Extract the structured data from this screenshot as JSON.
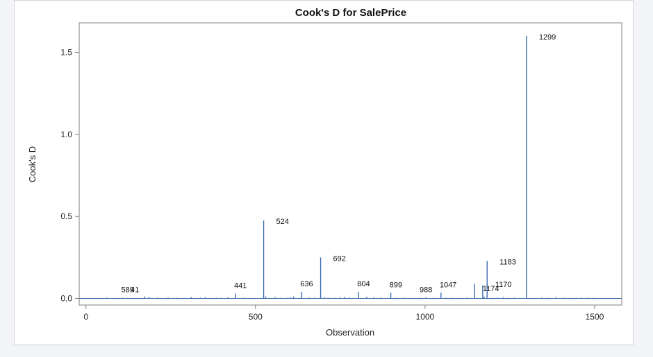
{
  "chart_data": {
    "type": "needle",
    "title": "Cook's D for SalePrice",
    "xlabel": "Observation",
    "ylabel": "Cook's D",
    "xlim": [
      -20,
      1580
    ],
    "ylim": [
      -0.04,
      1.68
    ],
    "x_ticks": [
      0,
      500,
      1000,
      1500
    ],
    "y_ticks": [
      0.0,
      0.5,
      1.0,
      1.5
    ],
    "y_tick_labels": [
      "0.0",
      "0.5",
      "1.0",
      "1.5"
    ],
    "series": [
      {
        "x": [
          62,
          108,
          124,
          172,
          186,
          212,
          242,
          268,
          290,
          310,
          338,
          352,
          372,
          386,
          398,
          418,
          441,
          464,
          486,
          524,
          530,
          542,
          558,
          574,
          592,
          602,
          612,
          633,
          636,
          658,
          674,
          692,
          704,
          718,
          734,
          748,
          762,
          776,
          804,
          828,
          848,
          870,
          899,
          914,
          938,
          988,
          1002,
          1024,
          1047,
          1062,
          1082,
          1106,
          1124,
          1146,
          1170,
          1174,
          1183,
          1200,
          1214,
          1230,
          1246,
          1262,
          1278,
          1299,
          1324,
          1344,
          1362,
          1386,
          1410,
          1428,
          1446,
          1462,
          1482,
          1496
        ],
        "values": [
          0.006,
          0.004,
          0.003,
          0.012,
          0.008,
          0.005,
          0.006,
          0.004,
          0.003,
          0.009,
          0.004,
          0.007,
          0.003,
          0.005,
          0.004,
          0.006,
          0.03,
          0.004,
          0.003,
          0.475,
          0.012,
          0.004,
          0.008,
          0.005,
          0.004,
          0.006,
          0.012,
          0.004,
          0.04,
          0.005,
          0.006,
          0.25,
          0.007,
          0.004,
          0.005,
          0.006,
          0.008,
          0.005,
          0.04,
          0.01,
          0.006,
          0.005,
          0.035,
          0.004,
          0.005,
          0.004,
          0.006,
          0.004,
          0.035,
          0.005,
          0.004,
          0.004,
          0.006,
          0.09,
          0.08,
          0.01,
          0.228,
          0.004,
          0.005,
          0.006,
          0.004,
          0.005,
          0.003,
          1.6,
          0.003,
          0.005,
          0.004,
          0.008,
          0.005,
          0.004,
          0.004,
          0.006,
          0.005,
          0.004
        ]
      }
    ],
    "major_labels": [
      {
        "text": "1299",
        "x": 1299,
        "y": 1.6
      },
      {
        "text": "524",
        "x": 524,
        "y": 0.475
      },
      {
        "text": "692",
        "x": 692,
        "y": 0.25
      },
      {
        "text": "1183",
        "x": 1183,
        "y": 0.228
      },
      {
        "text": "1170",
        "x": 1170,
        "y": 0.09
      }
    ],
    "minor_labels": [
      {
        "text": "1047",
        "x": 1047,
        "y": 0.035
      },
      {
        "text": "899",
        "x": 899,
        "y": 0.035
      },
      {
        "text": "804",
        "x": 804,
        "y": 0.04
      },
      {
        "text": "636",
        "x": 636,
        "y": 0.04
      },
      {
        "text": "441",
        "x": 441,
        "y": 0.03
      },
      {
        "text": "1174",
        "x": 1174,
        "y": 0.01
      },
      {
        "text": "988",
        "x": 988,
        "y": 0.004
      },
      {
        "text": "589",
        "x": 108,
        "y": 0.004
      },
      {
        "text": "41",
        "x": 136,
        "y": 0.004
      }
    ],
    "grid": false,
    "legend": "none",
    "colors": {
      "needle": "#3d6ab3",
      "baseline": "#3d6ab3",
      "frame": "#7f7f7f",
      "text": "#111111"
    }
  }
}
